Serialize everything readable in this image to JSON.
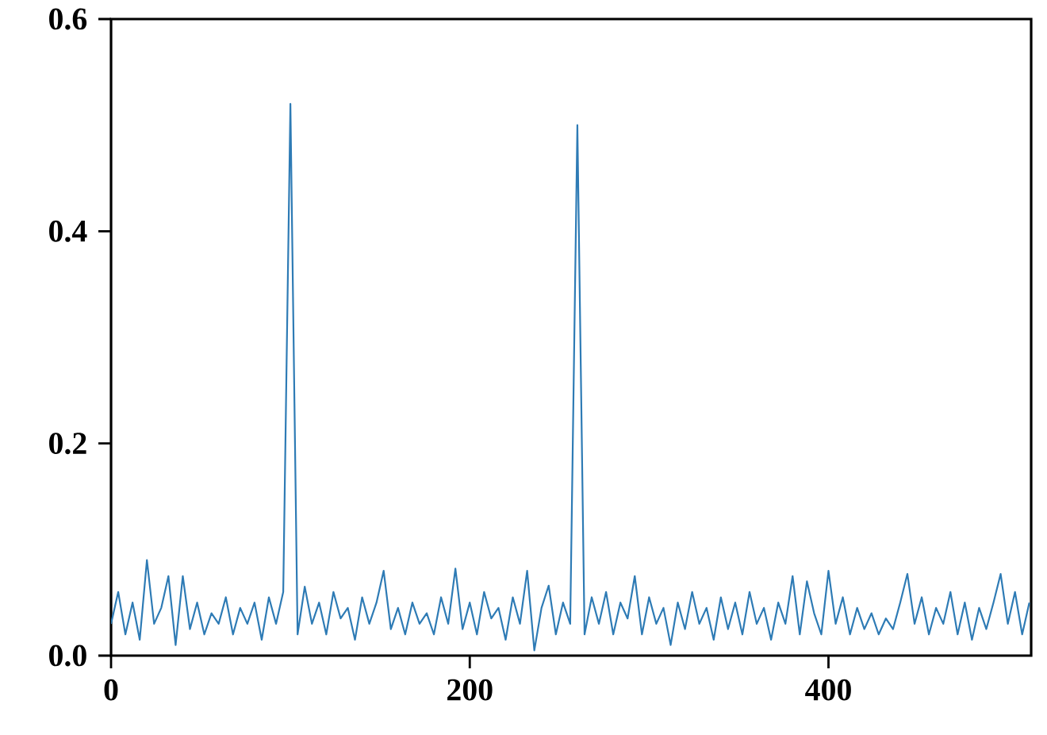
{
  "chart_data": {
    "type": "line",
    "x": [
      0,
      4,
      8,
      12,
      16,
      20,
      24,
      28,
      32,
      36,
      40,
      44,
      48,
      52,
      56,
      60,
      64,
      68,
      72,
      76,
      80,
      84,
      88,
      92,
      96,
      100,
      104,
      108,
      112,
      116,
      120,
      124,
      128,
      132,
      136,
      140,
      144,
      148,
      152,
      156,
      160,
      164,
      168,
      172,
      176,
      180,
      184,
      188,
      192,
      196,
      200,
      204,
      208,
      212,
      216,
      220,
      224,
      228,
      232,
      236,
      240,
      244,
      248,
      252,
      256,
      260,
      264,
      268,
      272,
      276,
      280,
      284,
      288,
      292,
      296,
      300,
      304,
      308,
      312,
      316,
      320,
      324,
      328,
      332,
      336,
      340,
      344,
      348,
      352,
      356,
      360,
      364,
      368,
      372,
      376,
      380,
      384,
      388,
      392,
      396,
      400,
      404,
      408,
      412,
      416,
      420,
      424,
      428,
      432,
      436,
      440,
      444,
      448,
      452,
      456,
      460,
      464,
      468,
      472,
      476,
      480,
      484,
      488,
      492,
      496,
      500,
      504,
      508,
      512
    ],
    "series": [
      {
        "color": "#2e7bb5",
        "values": [
          0.03,
          0.06,
          0.02,
          0.05,
          0.015,
          0.09,
          0.03,
          0.045,
          0.075,
          0.01,
          0.075,
          0.025,
          0.05,
          0.02,
          0.04,
          0.03,
          0.055,
          0.02,
          0.045,
          0.03,
          0.05,
          0.015,
          0.055,
          0.03,
          0.06,
          0.52,
          0.02,
          0.065,
          0.03,
          0.05,
          0.02,
          0.06,
          0.035,
          0.045,
          0.015,
          0.055,
          0.03,
          0.05,
          0.08,
          0.025,
          0.045,
          0.02,
          0.05,
          0.03,
          0.04,
          0.02,
          0.055,
          0.03,
          0.082,
          0.025,
          0.05,
          0.02,
          0.06,
          0.035,
          0.045,
          0.015,
          0.055,
          0.03,
          0.08,
          0.005,
          0.045,
          0.066,
          0.02,
          0.05,
          0.03,
          0.5,
          0.02,
          0.055,
          0.03,
          0.06,
          0.02,
          0.05,
          0.035,
          0.075,
          0.02,
          0.055,
          0.03,
          0.045,
          0.01,
          0.05,
          0.025,
          0.06,
          0.03,
          0.045,
          0.015,
          0.055,
          0.025,
          0.05,
          0.02,
          0.06,
          0.03,
          0.045,
          0.015,
          0.05,
          0.03,
          0.075,
          0.02,
          0.07,
          0.04,
          0.02,
          0.08,
          0.03,
          0.055,
          0.02,
          0.045,
          0.025,
          0.04,
          0.02,
          0.035,
          0.025,
          0.05,
          0.077,
          0.03,
          0.055,
          0.02,
          0.045,
          0.03,
          0.06,
          0.02,
          0.05,
          0.015,
          0.045,
          0.025,
          0.05,
          0.077,
          0.03,
          0.06,
          0.02,
          0.05
        ]
      }
    ],
    "xlim": [
      0,
      513
    ],
    "ylim": [
      0,
      0.6
    ],
    "xticks": [
      0,
      200,
      400
    ],
    "yticks": [
      {
        "value": 0,
        "label": "0.0"
      },
      {
        "value": 0.2,
        "label": "0.2"
      },
      {
        "value": 0.4,
        "label": "0.4"
      },
      {
        "value": 0.6,
        "label": "0.6"
      }
    ]
  }
}
